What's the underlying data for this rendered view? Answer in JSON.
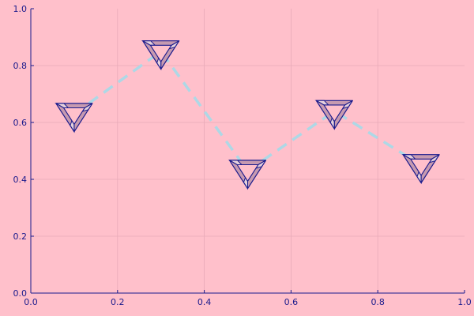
{
  "chart_data": {
    "type": "scatter",
    "title": "",
    "xlabel": "",
    "ylabel": "",
    "xlim": [
      0,
      1
    ],
    "ylim": [
      0,
      1
    ],
    "x_ticks": [
      "0.0",
      "0.2",
      "0.4",
      "0.6",
      "0.8",
      "1.0"
    ],
    "y_ticks": [
      "0.0",
      "0.2",
      "0.4",
      "0.6",
      "0.8",
      "1.0"
    ],
    "grid": true,
    "legend": "none",
    "series": [
      {
        "x": [
          0.1,
          0.3,
          0.5,
          0.7,
          0.9
        ],
        "y": [
          0.63,
          0.85,
          0.43,
          0.64,
          0.45
        ],
        "line_style": "dashed",
        "line_color": "#add8e6",
        "marker": "penrose-triangle-icon",
        "marker_fill": "#c79ab0",
        "marker_stroke": "#1a1a8c"
      }
    ]
  },
  "colors": {
    "background": "#ffc0cb",
    "axis": "#1a1a8c",
    "grid": "#e8aab8"
  }
}
